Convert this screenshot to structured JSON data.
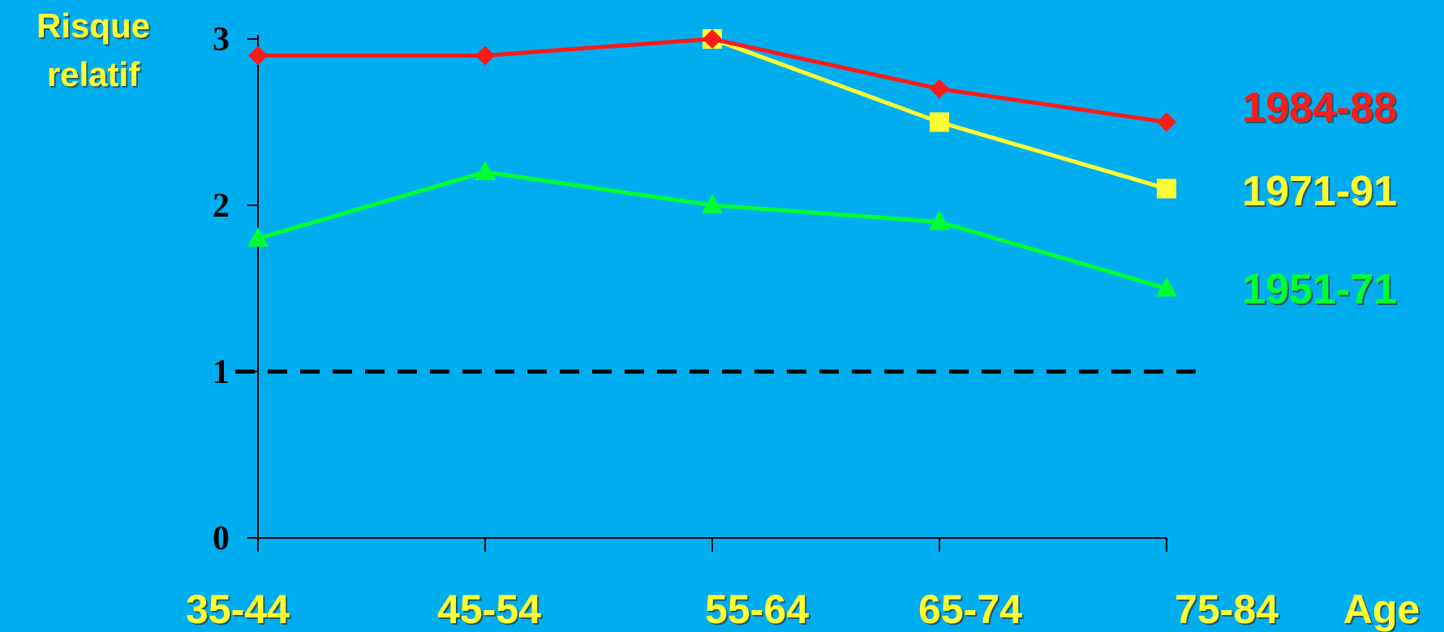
{
  "chart_data": {
    "type": "line",
    "ylabel": [
      "Risque",
      "relatif"
    ],
    "xlabel": "Age",
    "categories": [
      "35-44",
      "45-54",
      "55-64",
      "65-74",
      "75-84"
    ],
    "yticks": [
      "0",
      "1",
      "2",
      "3"
    ],
    "ylim": [
      0,
      3
    ],
    "reference_line": {
      "y": 1,
      "style": "dashed",
      "color": "#000000"
    },
    "legend_placement": "right",
    "series": [
      {
        "name": "1984-88",
        "color": "#FF1A1A",
        "marker": "diamond",
        "values": [
          2.9,
          2.9,
          3.0,
          2.7,
          2.5
        ]
      },
      {
        "name": "1971-91",
        "color": "#FFFF33",
        "marker": "square",
        "values": [
          null,
          null,
          3.0,
          2.5,
          2.1
        ]
      },
      {
        "name": "1951-71",
        "color": "#00FF33",
        "marker": "triangle",
        "values": [
          1.8,
          2.2,
          2.0,
          1.9,
          1.5
        ]
      }
    ]
  }
}
